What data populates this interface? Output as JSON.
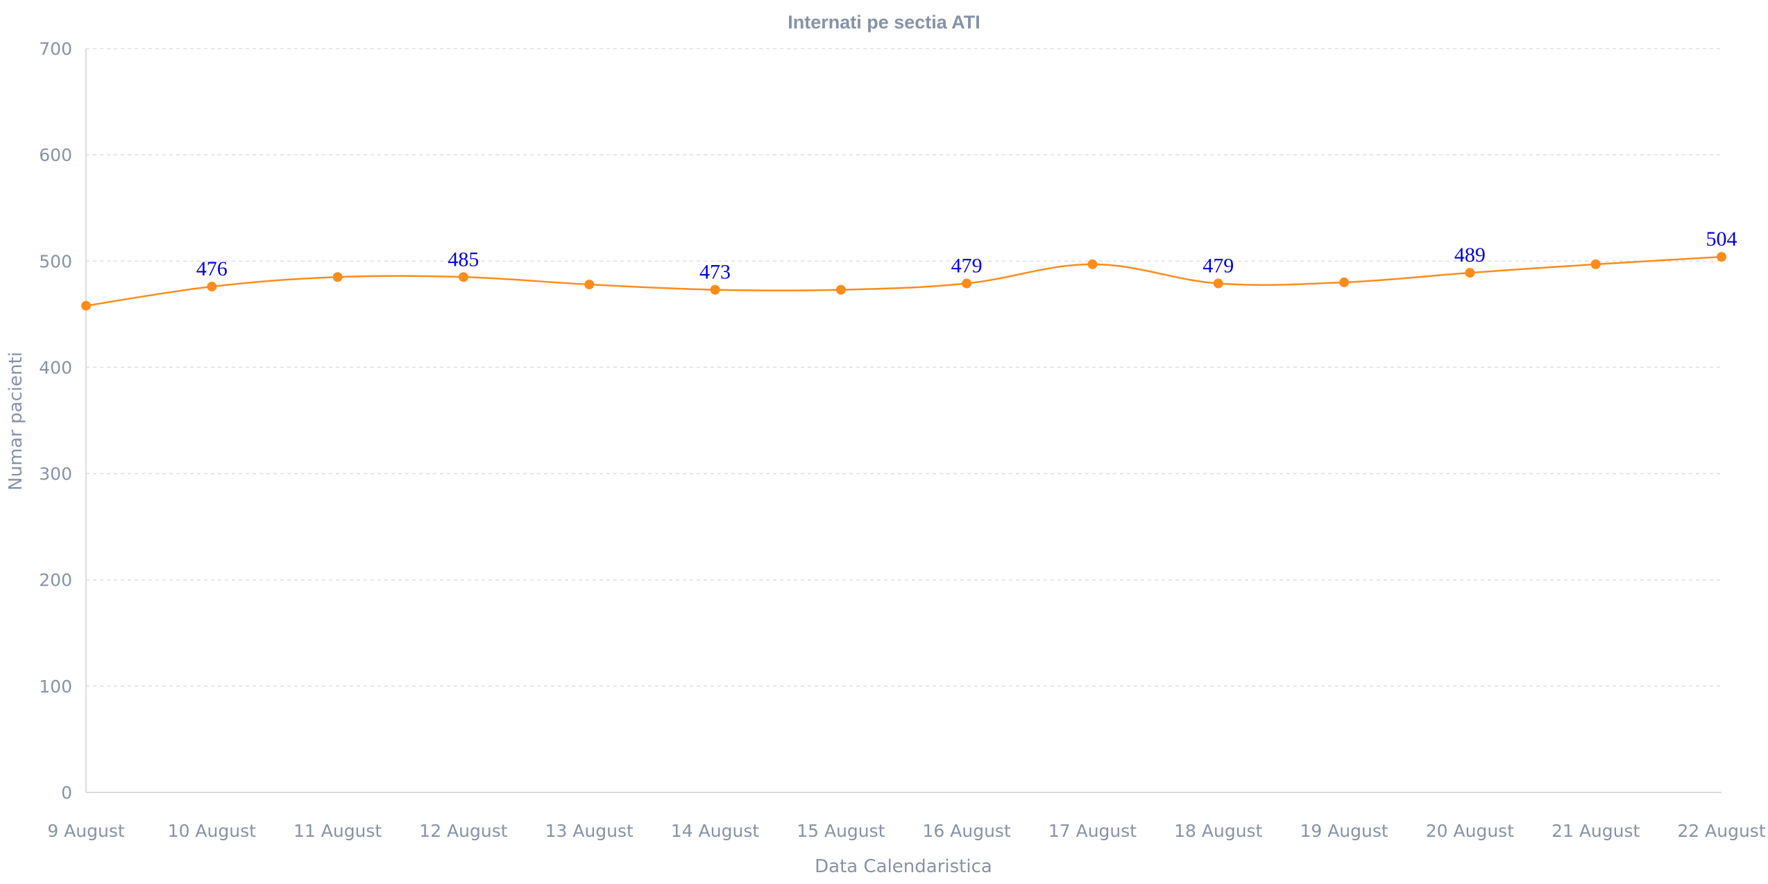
{
  "chart_data": {
    "type": "line",
    "title": "Internati pe sectia ATI",
    "xlabel": "Data Calendaristica",
    "ylabel": "Numar pacienti",
    "categories": [
      "9 August",
      "10 August",
      "11 August",
      "12 August",
      "13 August",
      "14 August",
      "15 August",
      "16 August",
      "17 August",
      "18 August",
      "19 August",
      "20 August",
      "21 August",
      "22 August"
    ],
    "series": [
      {
        "values": [
          458,
          476,
          485,
          485,
          478,
          473,
          473,
          479,
          497,
          479,
          480,
          489,
          497,
          504
        ]
      }
    ],
    "data_labels": [
      {
        "index": 1,
        "text": "476"
      },
      {
        "index": 3,
        "text": "485"
      },
      {
        "index": 5,
        "text": "473"
      },
      {
        "index": 7,
        "text": "479"
      },
      {
        "index": 9,
        "text": "479"
      },
      {
        "index": 11,
        "text": "489"
      },
      {
        "index": 13,
        "text": "504"
      }
    ],
    "ylim": [
      0,
      700
    ],
    "yticks": [
      0,
      100,
      200,
      300,
      400,
      500,
      600,
      700
    ],
    "ytick_labels": [
      "0",
      "100",
      "200",
      "300",
      "400",
      "500",
      "600",
      "700"
    ],
    "grid": true,
    "legend": "none",
    "colors": {
      "series": "#ff8c1a",
      "data_label": "#0000dd",
      "text": "#8593a8",
      "grid": "#dde0e4",
      "axis": "#d7dbe0"
    }
  }
}
